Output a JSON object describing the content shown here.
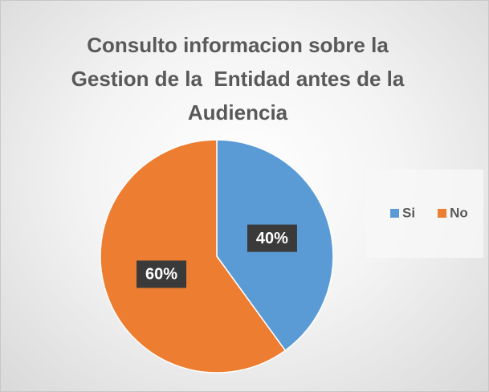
{
  "chart_data": {
    "type": "pie",
    "title": "Consulto informacion sobre la Gestion de la  Entidad antes de la Audiencia",
    "categories": [
      "Si",
      "No"
    ],
    "values": [
      40,
      60
    ],
    "value_labels": [
      "40%",
      "60%"
    ],
    "colors": [
      "#5b9bd5",
      "#ed7d31"
    ],
    "legend": "right"
  }
}
